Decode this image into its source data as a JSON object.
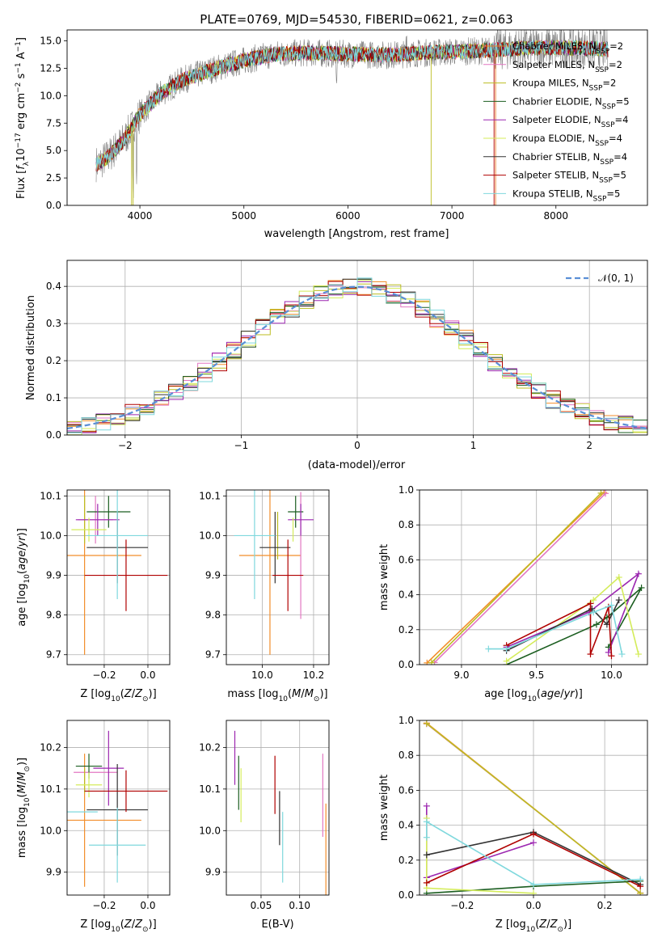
{
  "figure_title": "PLATE=0769, MJD=54530, FIBERID=0621, z=0.063",
  "colors": {
    "chabrier_miles": "#f28e2b",
    "salpeter_miles": "#e377c2",
    "kroupa_miles": "#bcbd22",
    "chabrier_elodie": "#1b5e20",
    "salpeter_elodie": "#9c27b0",
    "kroupa_elodie": "#d4ec5a",
    "chabrier_stelib": "#333333",
    "salpeter_stelib": "#b00000",
    "kroupa_stelib": "#7fd8dd",
    "chabrier_miles_line": "#e87c2b",
    "gaussian": "#5a8fd6",
    "grid": "#b0b0b0",
    "data": "#7f7f7f"
  },
  "chart_data": [
    {
      "type": "line",
      "title": "PLATE=0769, MJD=54530, FIBERID=0621, z=0.063",
      "xlabel": "wavelength [Angstrom, rest frame]",
      "ylabel": "Flux [f_λ10^-17 erg cm^-2 s^-1 A^-1]",
      "xlim": [
        3300,
        8880
      ],
      "ylim": [
        0,
        16
      ],
      "xticks": [
        4000,
        5000,
        6000,
        7000,
        8000
      ],
      "yticks": [
        0.0,
        2.5,
        5.0,
        7.5,
        10.0,
        12.5,
        15.0
      ],
      "legend": [
        "Chabrier MILES, N_SSP=2",
        "Salpeter MILES, N_SSP=2",
        "Kroupa MILES, N_SSP=2",
        "Chabrier ELODIE, N_SSP=5",
        "Salpeter ELODIE, N_SSP=4",
        "Kroupa ELODIE, N_SSP=4",
        "Chabrier STELIB, N_SSP=4",
        "Salpeter STELIB, N_SSP=5",
        "Kroupa STELIB, N_SSP=5"
      ],
      "legend_location": "upper right",
      "continuum": {
        "x": [
          3600,
          3700,
          3850,
          4000,
          4200,
          4400,
          4700,
          5000,
          5300,
          5600,
          6000,
          6400,
          6700,
          7000,
          7300,
          7600,
          8000,
          8400,
          8500
        ],
        "y": [
          3.8,
          4.5,
          6.0,
          8.3,
          10.2,
          11.4,
          12.4,
          13.2,
          13.8,
          13.9,
          13.8,
          13.7,
          13.9,
          14.0,
          14.1,
          14.3,
          14.4,
          14.3,
          14.2
        ]
      }
    },
    {
      "type": "bar",
      "xlabel": "(data-model)/error",
      "ylabel": "Normed distribution",
      "xlim": [
        -2.5,
        2.5
      ],
      "ylim": [
        0,
        0.47
      ],
      "xticks": [
        -2,
        -1,
        0,
        1,
        2
      ],
      "yticks": [
        0.0,
        0.1,
        0.2,
        0.3,
        0.4
      ],
      "bin_width": 0.125,
      "legend": [
        "N(0,1)"
      ],
      "legend_location": "upper right",
      "series_names": [
        "chabrier_miles",
        "salpeter_miles",
        "kroupa_miles",
        "chabrier_elodie",
        "salpeter_elodie",
        "kroupa_elodie",
        "chabrier_stelib",
        "salpeter_stelib",
        "kroupa_stelib"
      ]
    },
    {
      "type": "scatter",
      "xlabel": "Z [log10(Z/Z⊙)]",
      "ylabel": "age [log10(age/yr)]",
      "xlim": [
        -0.37,
        0.1
      ],
      "ylim": [
        9.675,
        10.115
      ],
      "xticks": [
        -0.2,
        0.0
      ],
      "yticks": [
        9.7,
        9.8,
        9.9,
        10.0,
        10.1
      ],
      "points": [
        {
          "s": "chabrier_miles",
          "x": -0.29,
          "y": 9.95,
          "xerr": 0.26,
          "yerr": 0.25
        },
        {
          "s": "salpeter_miles",
          "x": -0.24,
          "y": 10.04,
          "xerr": 0.08,
          "yerr": 0.06
        },
        {
          "s": "kroupa_miles",
          "x": -0.29,
          "y": 10.04,
          "xerr": 0.0,
          "yerr": 0.06
        },
        {
          "s": "chabrier_elodie",
          "x": -0.18,
          "y": 10.06,
          "xerr": 0.1,
          "yerr": 0.04
        },
        {
          "s": "salpeter_elodie",
          "x": -0.23,
          "y": 10.04,
          "xerr": 0.1,
          "yerr": 0.04
        },
        {
          "s": "kroupa_elodie",
          "x": -0.27,
          "y": 10.015,
          "xerr": 0.08,
          "yerr": 0.03
        },
        {
          "s": "chabrier_stelib",
          "x": -0.14,
          "y": 9.97,
          "xerr": 0.14,
          "yerr": 0.09
        },
        {
          "s": "salpeter_stelib",
          "x": -0.1,
          "y": 9.9,
          "xerr": 0.19,
          "yerr": 0.09
        },
        {
          "s": "kroupa_stelib",
          "x": -0.14,
          "y": 10.0,
          "xerr": 0.14,
          "yerr": 0.16
        }
      ]
    },
    {
      "type": "scatter",
      "xlabel": "mass [log10(M/M⊙)]",
      "ylabel": "",
      "xlim": [
        9.86,
        10.26
      ],
      "ylim": [
        9.675,
        10.115
      ],
      "xticks": [
        10.0,
        10.2
      ],
      "yticks": [
        9.7,
        9.8,
        9.9,
        10.0,
        10.1
      ],
      "points": [
        {
          "s": "chabrier_miles",
          "x": 10.03,
          "y": 9.95,
          "xerr": 0.12,
          "yerr": 0.25
        },
        {
          "s": "salpeter_miles",
          "x": 10.15,
          "y": 9.95,
          "xerr": 0.0,
          "yerr": 0.16
        },
        {
          "s": "kroupa_miles",
          "x": 10.06,
          "y": 10.0,
          "xerr": 0.0,
          "yerr": 0.06
        },
        {
          "s": "chabrier_elodie",
          "x": 10.13,
          "y": 10.06,
          "xerr": 0.03,
          "yerr": 0.04
        },
        {
          "s": "salpeter_elodie",
          "x": 10.15,
          "y": 10.04,
          "xerr": 0.05,
          "yerr": 0.04
        },
        {
          "s": "kroupa_elodie",
          "x": 10.12,
          "y": 10.015,
          "xerr": 0.0,
          "yerr": 0.03
        },
        {
          "s": "chabrier_stelib",
          "x": 10.05,
          "y": 9.97,
          "xerr": 0.06,
          "yerr": 0.09
        },
        {
          "s": "salpeter_stelib",
          "x": 10.1,
          "y": 9.9,
          "xerr": 0.06,
          "yerr": 0.09
        },
        {
          "s": "kroupa_stelib",
          "x": 9.97,
          "y": 10.0,
          "xerr": 0.08,
          "yerr": 0.16
        }
      ]
    },
    {
      "type": "line",
      "xlabel": "age [log10(age/yr)]",
      "ylabel": "mass weight",
      "xlim": [
        8.72,
        10.24
      ],
      "ylim": [
        0,
        1
      ],
      "xticks": [
        9.0,
        9.5,
        10.0
      ],
      "yticks": [
        0.0,
        0.2,
        0.4,
        0.6,
        0.8,
        1.0
      ],
      "series": [
        {
          "s": "chabrier_miles",
          "x": [
            8.77,
            9.95
          ],
          "y": [
            0.01,
            0.985
          ]
        },
        {
          "s": "salpeter_miles",
          "x": [
            8.82,
            9.96
          ],
          "y": [
            0.012,
            0.98
          ]
        },
        {
          "s": "kroupa_miles",
          "x": [
            8.8,
            9.93
          ],
          "y": [
            0.011,
            0.982
          ]
        },
        {
          "s": "chabrier_elodie",
          "x": [
            9.3,
            9.9,
            9.97,
            10.2,
            9.98
          ],
          "y": [
            0.0,
            0.23,
            0.27,
            0.44,
            0.1
          ]
        },
        {
          "s": "salpeter_elodie",
          "x": [
            9.3,
            9.85,
            10.18,
            9.98
          ],
          "y": [
            0.1,
            0.3,
            0.52,
            0.07
          ]
        },
        {
          "s": "kroupa_elodie",
          "x": [
            9.3,
            9.88,
            10.05,
            10.18
          ],
          "y": [
            0.02,
            0.37,
            0.5,
            0.06
          ]
        },
        {
          "s": "chabrier_stelib",
          "x": [
            9.3,
            9.87,
            9.97,
            10.05
          ],
          "y": [
            0.08,
            0.32,
            0.23,
            0.37
          ]
        },
        {
          "s": "salpeter_stelib",
          "x": [
            9.3,
            9.86,
            9.86,
            9.98,
            10.0
          ],
          "y": [
            0.11,
            0.35,
            0.06,
            0.33,
            0.05
          ]
        },
        {
          "s": "kroupa_stelib",
          "x": [
            9.18,
            9.3,
            9.88,
            10.0,
            10.07
          ],
          "y": [
            0.09,
            0.09,
            0.3,
            0.34,
            0.06
          ]
        }
      ]
    },
    {
      "type": "scatter",
      "xlabel": "Z [log10(Z/Z⊙)]",
      "ylabel": "mass [log10(M/M⊙)]",
      "xlim": [
        -0.37,
        0.1
      ],
      "ylim": [
        9.845,
        10.265
      ],
      "xticks": [
        -0.2,
        0.0
      ],
      "yticks": [
        9.9,
        10.0,
        10.1,
        10.2
      ],
      "points": [
        {
          "s": "chabrier_miles",
          "x": -0.29,
          "y": 10.025,
          "xerr": 0.26,
          "yerr": 0.16
        },
        {
          "s": "salpeter_miles",
          "x": -0.24,
          "y": 10.14,
          "xerr": 0.1,
          "yerr": 0.0
        },
        {
          "s": "kroupa_miles",
          "x": -0.29,
          "y": 10.12,
          "xerr": 0.0,
          "yerr": 0.03
        },
        {
          "s": "chabrier_elodie",
          "x": -0.27,
          "y": 10.155,
          "xerr": 0.06,
          "yerr": 0.03
        },
        {
          "s": "salpeter_elodie",
          "x": -0.18,
          "y": 10.15,
          "xerr": 0.07,
          "yerr": 0.09
        },
        {
          "s": "kroupa_elodie",
          "x": -0.27,
          "y": 10.11,
          "xerr": 0.06,
          "yerr": 0.03
        },
        {
          "s": "chabrier_stelib",
          "x": -0.14,
          "y": 10.05,
          "xerr": 0.14,
          "yerr": 0.11
        },
        {
          "s": "salpeter_stelib",
          "x": -0.1,
          "y": 10.095,
          "xerr": 0.19,
          "yerr": 0.05
        },
        {
          "s": "kroupa_stelib",
          "x": -0.14,
          "y": 9.965,
          "xerr": 0.13,
          "yerr": 0.09
        },
        {
          "s": "chabrier_miles_wide",
          "x": -0.3,
          "y": 10.045,
          "xerr": 0.07,
          "yerr": 0.0
        }
      ]
    },
    {
      "type": "scatter",
      "xlabel": "E(B-V)",
      "ylabel": "",
      "xlim": [
        0.005,
        0.138
      ],
      "ylim": [
        9.845,
        10.265
      ],
      "xticks": [
        0.05,
        0.1
      ],
      "yticks": [
        9.9,
        10.0,
        10.1,
        10.2
      ],
      "points": [
        {
          "s": "salpeter_elodie",
          "x": 0.016,
          "y": 10.175,
          "xerr": 0.0,
          "yerr": 0.065
        },
        {
          "s": "chabrier_elodie",
          "x": 0.021,
          "y": 10.115,
          "xerr": 0.0,
          "yerr": 0.065
        },
        {
          "s": "kroupa_elodie",
          "x": 0.024,
          "y": 10.085,
          "xerr": 0.0,
          "yerr": 0.065
        },
        {
          "s": "salpeter_stelib",
          "x": 0.068,
          "y": 10.11,
          "xerr": 0.0,
          "yerr": 0.07
        },
        {
          "s": "chabrier_stelib",
          "x": 0.074,
          "y": 10.03,
          "xerr": 0.0,
          "yerr": 0.065
        },
        {
          "s": "kroupa_stelib",
          "x": 0.078,
          "y": 9.96,
          "xerr": 0.0,
          "yerr": 0.085
        },
        {
          "s": "salpeter_miles",
          "x": 0.13,
          "y": 10.085,
          "xerr": 0.0,
          "yerr": 0.1
        },
        {
          "s": "chabrier_miles",
          "x": 0.134,
          "y": 9.945,
          "xerr": 0.0,
          "yerr": 0.12
        }
      ]
    },
    {
      "type": "line",
      "xlabel": "Z [log10(Z/Z⊙)]",
      "ylabel": "mass weight",
      "xlim": [
        -0.32,
        0.32
      ],
      "ylim": [
        0,
        1
      ],
      "xticks": [
        -0.2,
        0.0,
        0.2
      ],
      "yticks": [
        0.0,
        0.2,
        0.4,
        0.6,
        0.8,
        1.0
      ],
      "series": [
        {
          "s": "chabrier_miles",
          "x": [
            -0.3,
            0.3
          ],
          "y": [
            0.985,
            0.01
          ]
        },
        {
          "s": "salpeter_miles",
          "x": [
            -0.3,
            0.3
          ],
          "y": [
            0.98,
            0.012
          ]
        },
        {
          "s": "kroupa_miles",
          "x": [
            -0.3,
            0.3
          ],
          "y": [
            0.982,
            0.011
          ]
        },
        {
          "s": "chabrier_elodie",
          "x": [
            -0.3,
            0.0,
            0.3
          ],
          "y": [
            0.01,
            0.05,
            0.08
          ]
        },
        {
          "s": "salpeter_elodie",
          "x": [
            -0.3,
            -0.3,
            0.0
          ],
          "y": [
            0.51,
            0.1,
            0.3
          ]
        },
        {
          "s": "kroupa_elodie",
          "x": [
            -0.3,
            -0.3,
            0.0
          ],
          "y": [
            0.44,
            0.04,
            0.01
          ]
        },
        {
          "s": "chabrier_stelib",
          "x": [
            -0.3,
            0.0,
            0.3
          ],
          "y": [
            0.23,
            0.36,
            0.06
          ]
        },
        {
          "s": "salpeter_stelib",
          "x": [
            -0.3,
            0.0,
            0.3
          ],
          "y": [
            0.07,
            0.35,
            0.05
          ]
        },
        {
          "s": "kroupa_stelib",
          "x": [
            -0.3,
            -0.3,
            0.0,
            0.3
          ],
          "y": [
            0.33,
            0.42,
            0.06,
            0.09
          ]
        }
      ]
    }
  ]
}
